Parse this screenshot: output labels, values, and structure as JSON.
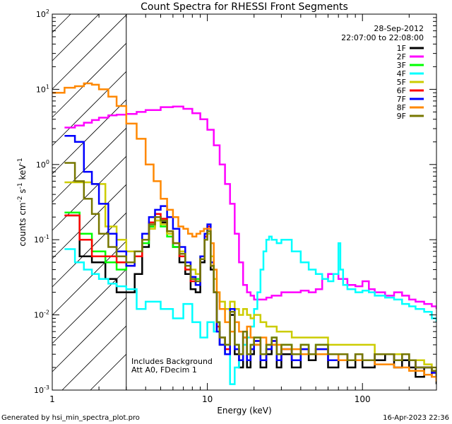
{
  "chart_data": {
    "type": "line",
    "title": "Count Spectra for RHESSI Front Segments",
    "xlabel": "Energy (keV)",
    "ylabel_parts": [
      "counts cm",
      "-2",
      " s",
      "-1",
      " keV",
      "-1"
    ],
    "xscale": "log",
    "yscale": "log",
    "xlim": [
      1,
      300
    ],
    "ylim": [
      0.001,
      100
    ],
    "x_ticks": [
      {
        "v": 1,
        "label": "1"
      },
      {
        "v": 10,
        "label": "10"
      },
      {
        "v": 100,
        "label": "100"
      }
    ],
    "y_ticks": [
      {
        "v": 0.001,
        "base": "10",
        "exp": "-3"
      },
      {
        "v": 0.01,
        "base": "10",
        "exp": "-2"
      },
      {
        "v": 0.1,
        "base": "10",
        "exp": "-1"
      },
      {
        "v": 1,
        "base": "10",
        "exp": "0"
      },
      {
        "v": 10,
        "base": "10",
        "exp": "1"
      },
      {
        "v": 100,
        "base": "10",
        "exp": "2"
      }
    ],
    "hatched_region": {
      "x_range": [
        1,
        3
      ]
    },
    "date": "28-Sep-2012",
    "time_range": "22:07:00 to 22:08:00",
    "annotations": [
      "Includes Background",
      "Att A0, FDecim 1"
    ],
    "footer_left": "Generated by hsi_min_spectra_plot.pro",
    "footer_right": "16-Apr-2023 22:36",
    "series": [
      {
        "name": "1F",
        "color": "#000000",
        "x": [
          1.2,
          1.5,
          1.8,
          2.2,
          2.6,
          3.0,
          3.4,
          3.8,
          4.2,
          4.6,
          5.0,
          5.5,
          6.0,
          6.6,
          7.2,
          7.8,
          8.4,
          9.0,
          9.6,
          10.0,
          10.5,
          11.0,
          11.5,
          12.0,
          13.0,
          14.0,
          15,
          16,
          17,
          18,
          19,
          20,
          22,
          24,
          26,
          28,
          30,
          35,
          40,
          45,
          50,
          60,
          70,
          80,
          90,
          100,
          120,
          140,
          160,
          180,
          200,
          220,
          250,
          280,
          300
        ],
        "y": [
          0.21,
          0.06,
          0.05,
          0.03,
          0.02,
          0.02,
          0.035,
          0.08,
          0.15,
          0.2,
          0.17,
          0.12,
          0.08,
          0.05,
          0.035,
          0.022,
          0.02,
          0.05,
          0.1,
          0.13,
          0.04,
          0.02,
          0.006,
          0.004,
          0.003,
          0.01,
          0.003,
          0.002,
          0.005,
          0.002,
          0.003,
          0.004,
          0.002,
          0.003,
          0.004,
          0.002,
          0.003,
          0.002,
          0.003,
          0.0025,
          0.003,
          0.002,
          0.0025,
          0.002,
          0.003,
          0.002,
          0.0025,
          0.003,
          0.002,
          0.0025,
          0.002,
          0.0015,
          0.002,
          0.0015,
          0.0012
        ]
      },
      {
        "name": "2F",
        "color": "#ff00ff",
        "x": [
          1.2,
          1.4,
          1.6,
          1.8,
          2.0,
          2.3,
          2.6,
          3.0,
          3.5,
          4,
          5,
          6,
          7,
          8,
          9,
          10,
          11,
          12,
          13,
          14,
          15,
          16,
          17,
          18,
          19,
          20,
          22,
          24,
          26,
          28,
          30,
          35,
          40,
          45,
          50,
          55,
          60,
          70,
          80,
          90,
          100,
          110,
          120,
          140,
          160,
          180,
          200,
          220,
          250,
          280,
          300
        ],
        "y": [
          3.1,
          3.3,
          3.6,
          3.9,
          4.2,
          4.5,
          4.6,
          4.7,
          5.0,
          5.3,
          5.8,
          5.9,
          5.5,
          4.8,
          4.0,
          2.9,
          1.8,
          1.0,
          0.55,
          0.3,
          0.12,
          0.05,
          0.025,
          0.02,
          0.018,
          0.016,
          0.016,
          0.017,
          0.018,
          0.018,
          0.02,
          0.02,
          0.021,
          0.02,
          0.022,
          0.03,
          0.035,
          0.03,
          0.025,
          0.024,
          0.028,
          0.022,
          0.02,
          0.018,
          0.02,
          0.018,
          0.016,
          0.015,
          0.014,
          0.013,
          0.012
        ]
      },
      {
        "name": "3F",
        "color": "#00ff00",
        "x": [
          1.2,
          1.5,
          1.8,
          2.2,
          2.6,
          3.0,
          3.4,
          3.8,
          4.2,
          4.6,
          5.0,
          5.5,
          6.0,
          6.6,
          7.2,
          7.8,
          8.4,
          9.0,
          9.6,
          10.0,
          10.5,
          11.0,
          11.5,
          12.0,
          13.0,
          14.0,
          15,
          16,
          17,
          18,
          19,
          20,
          22,
          24,
          26,
          28,
          30,
          35,
          40,
          45,
          50,
          60,
          70,
          80,
          90,
          100,
          120,
          140,
          160,
          180,
          200,
          220,
          250,
          280,
          300
        ],
        "y": [
          0.23,
          0.12,
          0.07,
          0.05,
          0.04,
          0.05,
          0.06,
          0.09,
          0.15,
          0.18,
          0.15,
          0.11,
          0.08,
          0.06,
          0.04,
          0.03,
          0.03,
          0.06,
          0.1,
          0.14,
          0.05,
          0.02,
          0.008,
          0.005,
          0.004,
          0.012,
          0.004,
          0.003,
          0.006,
          0.003,
          0.004,
          0.005,
          0.003,
          0.004,
          0.005,
          0.003,
          0.004,
          0.003,
          0.004,
          0.003,
          0.004,
          0.003,
          0.003,
          0.0025,
          0.003,
          0.0025,
          0.003,
          0.003,
          0.0025,
          0.003,
          0.0025,
          0.002,
          0.002,
          0.0018,
          0.0015
        ]
      },
      {
        "name": "4F",
        "color": "#00ffff",
        "x": [
          1.2,
          1.4,
          1.6,
          1.8,
          2.0,
          2.3,
          2.6,
          3.0,
          3.5,
          4,
          5,
          6,
          7,
          8,
          9,
          10,
          11,
          12,
          13,
          14,
          15,
          16,
          17,
          18,
          19,
          20,
          21,
          22,
          23,
          24,
          25,
          26,
          28,
          30,
          35,
          40,
          45,
          50,
          55,
          60,
          65,
          70,
          72,
          75,
          80,
          90,
          100,
          110,
          120,
          140,
          160,
          180,
          200,
          220,
          250,
          280,
          300
        ],
        "y": [
          0.075,
          0.05,
          0.04,
          0.035,
          0.03,
          0.026,
          0.024,
          0.022,
          0.012,
          0.015,
          0.012,
          0.009,
          0.014,
          0.008,
          0.005,
          0.008,
          0.006,
          0.005,
          0.003,
          0.0012,
          0.002,
          0.003,
          0.004,
          0.005,
          0.007,
          0.012,
          0.02,
          0.04,
          0.07,
          0.1,
          0.11,
          0.1,
          0.09,
          0.1,
          0.07,
          0.05,
          0.04,
          0.035,
          0.03,
          0.028,
          0.035,
          0.09,
          0.04,
          0.025,
          0.022,
          0.02,
          0.021,
          0.02,
          0.018,
          0.017,
          0.016,
          0.014,
          0.013,
          0.012,
          0.011,
          0.009,
          0.008
        ]
      },
      {
        "name": "5F",
        "color": "#cccc00",
        "x": [
          1.2,
          1.5,
          1.8,
          2.2,
          2.6,
          3.0,
          3.4,
          3.8,
          4.2,
          4.6,
          5.0,
          5.5,
          6.0,
          6.6,
          7.2,
          7.8,
          8.4,
          9.0,
          9.6,
          10.0,
          10.5,
          11.0,
          11.5,
          12.0,
          13.0,
          14.0,
          15,
          16,
          17,
          18,
          19,
          20,
          22,
          24,
          26,
          28,
          30,
          35,
          40,
          45,
          50,
          60,
          70,
          80,
          90,
          100,
          120,
          140,
          160,
          180,
          200,
          220,
          250,
          280,
          300
        ],
        "y": [
          0.58,
          0.58,
          0.55,
          0.15,
          0.1,
          0.07,
          0.07,
          0.1,
          0.14,
          0.18,
          0.16,
          0.12,
          0.09,
          0.07,
          0.05,
          0.04,
          0.035,
          0.06,
          0.1,
          0.12,
          0.06,
          0.03,
          0.02,
          0.015,
          0.012,
          0.015,
          0.012,
          0.01,
          0.012,
          0.01,
          0.009,
          0.01,
          0.008,
          0.007,
          0.007,
          0.006,
          0.006,
          0.005,
          0.005,
          0.005,
          0.005,
          0.004,
          0.004,
          0.004,
          0.004,
          0.004,
          0.003,
          0.003,
          0.003,
          0.003,
          0.0025,
          0.0025,
          0.0022,
          0.002,
          0.0018
        ]
      },
      {
        "name": "6F",
        "color": "#ff0000",
        "x": [
          1.2,
          1.5,
          1.8,
          2.2,
          2.6,
          3.0,
          3.4,
          3.8,
          4.2,
          4.6,
          5.0,
          5.5,
          6.0,
          6.6,
          7.2,
          7.8,
          8.4,
          9.0,
          9.6,
          10.0,
          10.5,
          11.0,
          11.5,
          12.0,
          13.0,
          14.0,
          15,
          16,
          17,
          18,
          19,
          20,
          22,
          24,
          26,
          28,
          30,
          35,
          40,
          45,
          50,
          60,
          70,
          80,
          90,
          100,
          120,
          140,
          160,
          180,
          200,
          220,
          250,
          280,
          300
        ],
        "y": [
          0.21,
          0.1,
          0.06,
          0.06,
          0.05,
          0.045,
          0.06,
          0.1,
          0.17,
          0.22,
          0.19,
          0.13,
          0.09,
          0.06,
          0.04,
          0.028,
          0.025,
          0.055,
          0.11,
          0.15,
          0.045,
          0.02,
          0.007,
          0.005,
          0.0035,
          0.011,
          0.0035,
          0.0025,
          0.006,
          0.0025,
          0.0035,
          0.0045,
          0.0025,
          0.0035,
          0.0045,
          0.0025,
          0.0035,
          0.0025,
          0.0035,
          0.003,
          0.0035,
          0.0025,
          0.003,
          0.0025,
          0.003,
          0.0025,
          0.003,
          0.003,
          0.0025,
          0.003,
          0.0025,
          0.002,
          0.002,
          0.0017,
          0.0014
        ]
      },
      {
        "name": "7F",
        "color": "#0000ff",
        "x": [
          1.2,
          1.4,
          1.6,
          1.8,
          2.0,
          2.3,
          2.6,
          3.0,
          3.4,
          3.8,
          4.2,
          4.6,
          5.0,
          5.5,
          6.0,
          6.6,
          7.2,
          7.8,
          8.4,
          9.0,
          9.6,
          10.0,
          10.5,
          11.0,
          11.5,
          12.0,
          13.0,
          14.0,
          15,
          16,
          17,
          18,
          19,
          20,
          22,
          24,
          26,
          28,
          30,
          35,
          40,
          45,
          50,
          60,
          70,
          80,
          90,
          100,
          120,
          140,
          160,
          180,
          200,
          220,
          250,
          280,
          300
        ],
        "y": [
          2.4,
          2.0,
          0.8,
          0.55,
          0.3,
          0.12,
          0.07,
          0.045,
          0.07,
          0.12,
          0.2,
          0.25,
          0.28,
          0.2,
          0.14,
          0.08,
          0.05,
          0.032,
          0.025,
          0.06,
          0.12,
          0.16,
          0.05,
          0.02,
          0.006,
          0.004,
          0.003,
          0.012,
          0.0035,
          0.0025,
          0.006,
          0.0025,
          0.0035,
          0.0045,
          0.0025,
          0.0035,
          0.0045,
          0.0025,
          0.0035,
          0.0025,
          0.0035,
          0.003,
          0.0035,
          0.0025,
          0.003,
          0.0025,
          0.003,
          0.0025,
          0.003,
          0.003,
          0.0025,
          0.003,
          0.0025,
          0.002,
          0.002,
          0.0017,
          0.0014
        ]
      },
      {
        "name": "8F",
        "color": "#ff8800",
        "x": [
          1.0,
          1.2,
          1.4,
          1.6,
          1.8,
          2.0,
          2.3,
          2.6,
          3.0,
          3.5,
          4,
          4.5,
          5,
          5.5,
          6,
          6.5,
          7,
          7.5,
          8,
          8.5,
          9,
          9.5,
          10,
          10.5,
          11,
          11.5,
          12,
          13,
          14,
          15,
          16,
          17,
          18,
          19,
          20,
          22,
          24,
          26,
          28,
          30,
          35,
          40,
          45,
          50,
          60,
          70,
          80,
          90,
          100,
          120,
          140,
          160,
          180,
          200,
          220,
          250,
          280,
          300
        ],
        "y": [
          9.0,
          10.5,
          11.0,
          12.0,
          11.5,
          10.0,
          8.0,
          6.0,
          3.5,
          2.2,
          1.0,
          0.6,
          0.35,
          0.25,
          0.2,
          0.15,
          0.14,
          0.12,
          0.11,
          0.12,
          0.13,
          0.14,
          0.14,
          0.09,
          0.04,
          0.02,
          0.012,
          0.008,
          0.006,
          0.008,
          0.006,
          0.005,
          0.007,
          0.005,
          0.004,
          0.005,
          0.004,
          0.004,
          0.004,
          0.0035,
          0.0035,
          0.003,
          0.003,
          0.003,
          0.003,
          0.0025,
          0.0025,
          0.0025,
          0.0025,
          0.0022,
          0.0022,
          0.002,
          0.002,
          0.0018,
          0.0018,
          0.0016,
          0.0015,
          0.0013
        ]
      },
      {
        "name": "9F",
        "color": "#777700",
        "x": [
          1.2,
          1.4,
          1.6,
          1.8,
          2.0,
          2.3,
          2.6,
          3.0,
          3.4,
          3.8,
          4.2,
          4.6,
          5.0,
          5.5,
          6.0,
          6.6,
          7.2,
          7.8,
          8.4,
          9.0,
          9.6,
          10.0,
          10.5,
          11.0,
          11.5,
          12.0,
          13.0,
          14.0,
          15,
          16,
          17,
          18,
          19,
          20,
          22,
          24,
          26,
          28,
          30,
          35,
          40,
          45,
          50,
          60,
          70,
          80,
          90,
          100,
          120,
          140,
          160,
          180,
          200,
          220,
          250,
          280,
          300
        ],
        "y": [
          1.05,
          0.6,
          0.35,
          0.22,
          0.12,
          0.08,
          0.06,
          0.05,
          0.07,
          0.1,
          0.16,
          0.2,
          0.18,
          0.13,
          0.09,
          0.065,
          0.045,
          0.03,
          0.028,
          0.055,
          0.1,
          0.13,
          0.045,
          0.02,
          0.008,
          0.005,
          0.004,
          0.011,
          0.004,
          0.003,
          0.006,
          0.003,
          0.004,
          0.005,
          0.003,
          0.004,
          0.005,
          0.003,
          0.004,
          0.003,
          0.004,
          0.003,
          0.004,
          0.003,
          0.003,
          0.0025,
          0.003,
          0.0025,
          0.003,
          0.003,
          0.0025,
          0.003,
          0.0025,
          0.002,
          0.002,
          0.0018,
          0.0015
        ]
      }
    ]
  }
}
